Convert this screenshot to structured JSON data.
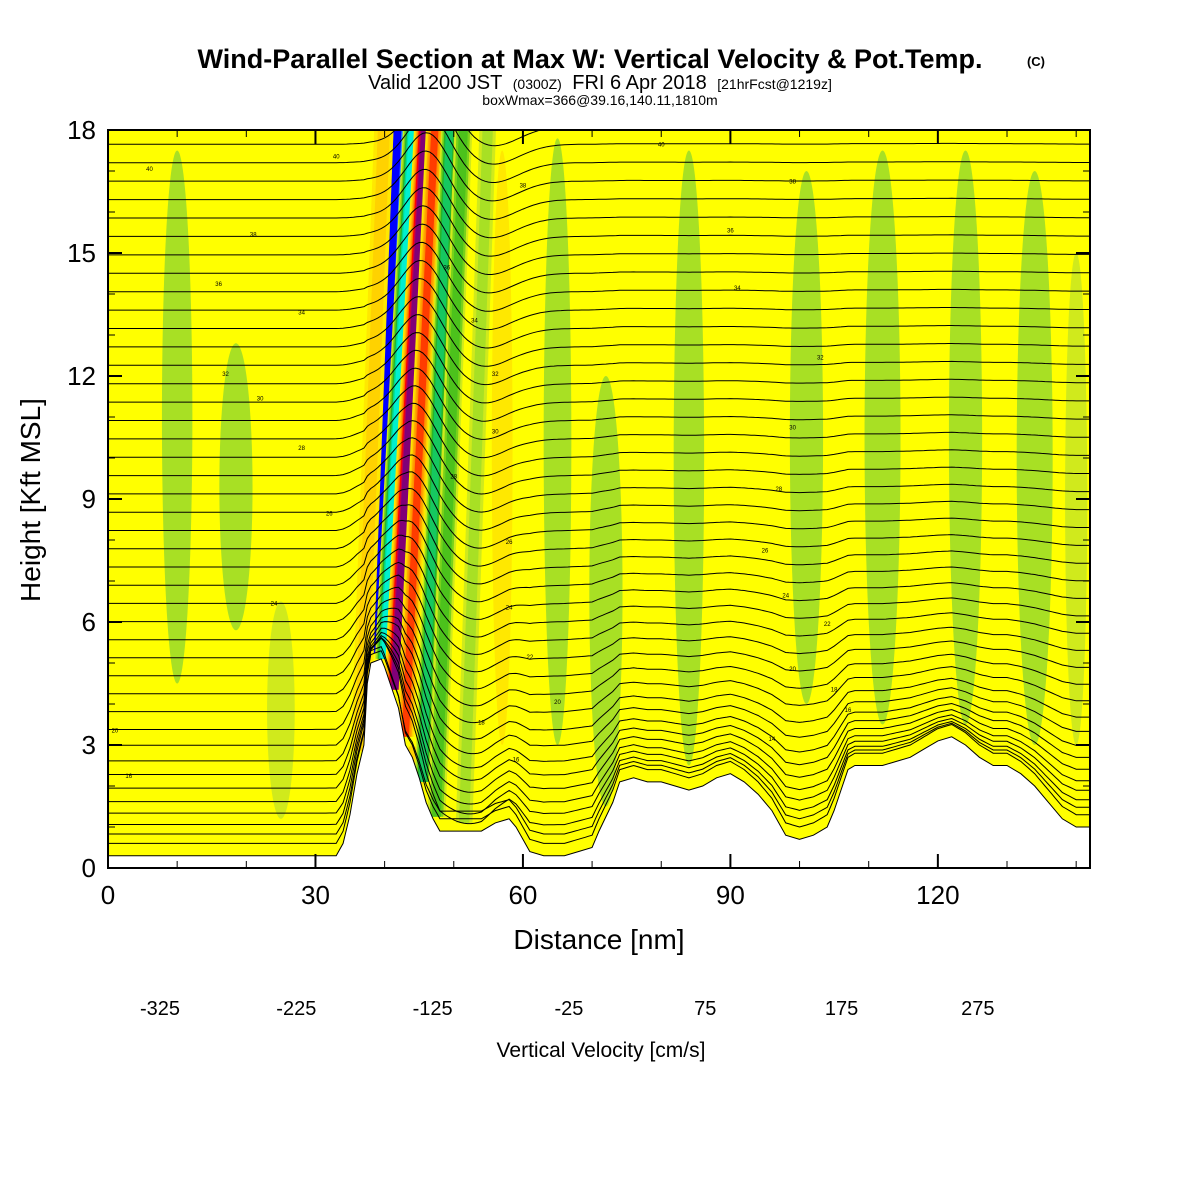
{
  "title": {
    "main": "Wind-Parallel Section at Max W: Vertical Velocity & Pot.Temp.",
    "copyright": "(C)",
    "valid_prefix": "Valid 1200 JST",
    "valid_utc": "(0300Z)",
    "valid_date": "FRI 6 Apr 2018",
    "forecast": "[21hrFcst@1219z]",
    "box_info": "boxWmax=366@39.16,140.11,1810m"
  },
  "chart_data": {
    "type": "heatmap",
    "xlabel": "Distance [nm]",
    "ylabel": "Height [Kft MSL]",
    "xlim": [
      0,
      142
    ],
    "ylim": [
      0,
      18
    ],
    "x_ticks": [
      0,
      30,
      60,
      90,
      120
    ],
    "y_ticks": [
      0,
      3,
      6,
      9,
      12,
      15,
      18
    ],
    "x_tick_labels": [
      "0",
      "30",
      "60",
      "90",
      "120"
    ],
    "y_tick_labels": [
      "0",
      "3",
      "6",
      "9",
      "12",
      "15",
      "18"
    ],
    "colorbar": {
      "label": "Vertical Velocity [cm/s]",
      "min": -325,
      "max": 325,
      "step": 25,
      "tick_values": [
        -325,
        -225,
        -125,
        -25,
        75,
        175,
        275
      ],
      "tick_labels": [
        "-325",
        "-225",
        "-125",
        "-25",
        "75",
        "175",
        "275"
      ],
      "colors": [
        "#0000ff",
        "#1a5cff",
        "#2f86ff",
        "#20b5ff",
        "#00e5ff",
        "#00f0d0",
        "#00dc96",
        "#16c860",
        "#26b42a",
        "#4cc21c",
        "#78d21a",
        "#a8e024",
        "#d0ea1c",
        "#ffff00",
        "#ffe800",
        "#ffd200",
        "#ffbc00",
        "#ffa800",
        "#ff9000",
        "#ff6e00",
        "#ff3c00",
        "#ff0000",
        "#e00030",
        "#c0004c",
        "#a00064",
        "#800078"
      ]
    },
    "terrain_kft": [
      [
        0,
        0.3
      ],
      [
        4,
        0.3
      ],
      [
        8,
        0.3
      ],
      [
        12,
        0.3
      ],
      [
        16,
        0.3
      ],
      [
        20,
        0.3
      ],
      [
        24,
        0.3
      ],
      [
        28,
        0.3
      ],
      [
        30,
        0.3
      ],
      [
        33,
        0.3
      ],
      [
        34,
        0.6
      ],
      [
        35,
        1.3
      ],
      [
        36,
        2.3
      ],
      [
        37,
        3.0
      ],
      [
        37.5,
        4.5
      ],
      [
        38,
        5.0
      ],
      [
        39.5,
        5.1
      ],
      [
        40,
        4.9
      ],
      [
        41,
        4.4
      ],
      [
        42,
        3.9
      ],
      [
        43,
        3.0
      ],
      [
        44,
        2.7
      ],
      [
        45,
        2.2
      ],
      [
        46,
        1.6
      ],
      [
        47,
        1.2
      ],
      [
        48,
        0.9
      ],
      [
        50,
        0.9
      ],
      [
        52,
        0.9
      ],
      [
        54,
        0.9
      ],
      [
        56,
        1.1
      ],
      [
        58,
        1.2
      ],
      [
        59,
        1.0
      ],
      [
        60,
        0.7
      ],
      [
        61,
        0.4
      ],
      [
        63,
        0.3
      ],
      [
        66,
        0.3
      ],
      [
        68,
        0.4
      ],
      [
        70,
        0.5
      ],
      [
        71,
        0.9
      ],
      [
        73,
        1.6
      ],
      [
        74,
        2.1
      ],
      [
        76,
        2.2
      ],
      [
        78,
        2.1
      ],
      [
        80,
        2.1
      ],
      [
        82,
        2.0
      ],
      [
        84,
        1.9
      ],
      [
        86,
        2.0
      ],
      [
        88,
        2.2
      ],
      [
        90,
        2.3
      ],
      [
        92,
        2.1
      ],
      [
        94,
        1.8
      ],
      [
        96,
        1.4
      ],
      [
        98,
        0.8
      ],
      [
        100,
        0.7
      ],
      [
        102,
        0.8
      ],
      [
        104,
        1.0
      ],
      [
        105,
        1.4
      ],
      [
        106,
        1.9
      ],
      [
        107,
        2.4
      ],
      [
        108,
        2.5
      ],
      [
        110,
        2.5
      ],
      [
        112,
        2.5
      ],
      [
        114,
        2.6
      ],
      [
        116,
        2.7
      ],
      [
        118,
        2.9
      ],
      [
        120,
        3.1
      ],
      [
        122,
        3.2
      ],
      [
        124,
        3.0
      ],
      [
        126,
        2.7
      ],
      [
        128,
        2.5
      ],
      [
        130,
        2.5
      ],
      [
        132,
        2.3
      ],
      [
        134,
        2.0
      ],
      [
        136,
        1.6
      ],
      [
        138,
        1.2
      ],
      [
        140,
        1.0
      ],
      [
        142,
        1.0
      ]
    ],
    "wave_bands": [
      {
        "x_base": 38.5,
        "x_top": 42.0,
        "width": 1.6,
        "w": -320
      },
      {
        "x_base": 40.0,
        "x_top": 44.2,
        "width": 1.4,
        "w": -200
      },
      {
        "x_base": 41.5,
        "x_top": 46.0,
        "width": 1.6,
        "w": 310
      },
      {
        "x_base": 43.0,
        "x_top": 47.4,
        "width": 1.3,
        "w": 180
      },
      {
        "x_base": 45.5,
        "x_top": 49.5,
        "width": 1.2,
        "w": -150
      },
      {
        "x_base": 47.5,
        "x_top": 51.5,
        "width": 1.3,
        "w": -90
      },
      {
        "x_base": 36.5,
        "x_top": 40.0,
        "width": 1.4,
        "w": 60
      },
      {
        "x_base": 51.5,
        "x_top": 55.0,
        "width": 1.2,
        "w": -40
      }
    ],
    "weak_downdrafts": [
      {
        "x": 10,
        "y1": 4.5,
        "y2": 17.5,
        "width": 2.2,
        "w": -30
      },
      {
        "x": 18.5,
        "y1": 5.8,
        "y2": 12.8,
        "width": 2.4,
        "w": -30
      },
      {
        "x": 25,
        "y1": 1.2,
        "y2": 6.5,
        "width": 2.0,
        "w": -25
      },
      {
        "x": 65,
        "y1": 3.0,
        "y2": 17.8,
        "width": 2.0,
        "w": -35
      },
      {
        "x": 72,
        "y1": 1.5,
        "y2": 12.0,
        "width": 2.4,
        "w": -30
      },
      {
        "x": 84,
        "y1": 2.5,
        "y2": 17.5,
        "width": 2.2,
        "w": -35
      },
      {
        "x": 101,
        "y1": 4.0,
        "y2": 17.0,
        "width": 2.4,
        "w": -30
      },
      {
        "x": 112,
        "y1": 3.5,
        "y2": 17.5,
        "width": 2.6,
        "w": -35
      },
      {
        "x": 124,
        "y1": 3.5,
        "y2": 17.5,
        "width": 2.4,
        "w": -40
      },
      {
        "x": 134,
        "y1": 3.0,
        "y2": 17.0,
        "width": 2.6,
        "w": -35
      },
      {
        "x": 140,
        "y1": 3.0,
        "y2": 15.0,
        "width": 1.6,
        "w": -25
      }
    ],
    "weak_updrafts": [
      {
        "x": 57,
        "y1": 3.0,
        "y2": 17.5,
        "width": 1.5,
        "w": 40
      },
      {
        "x": 44,
        "y1": 0.9,
        "y2": 3.0,
        "width": 1.5,
        "w": 60
      }
    ],
    "isentrope_base_kft": [
      0.3,
      0.55,
      0.8,
      1.1,
      1.4,
      1.75,
      2.1,
      2.45,
      2.85,
      3.25,
      3.7,
      4.15,
      4.6,
      5.05,
      5.5,
      5.95,
      6.4,
      6.85,
      7.3,
      7.75,
      8.2,
      8.65,
      9.1,
      9.55,
      10.0,
      10.45,
      10.9,
      11.35,
      11.8,
      12.25,
      12.7,
      13.15,
      13.6,
      14.05,
      14.5,
      14.95,
      15.4,
      15.85,
      16.3,
      16.75,
      17.2,
      17.65,
      18.1
    ],
    "contour_labels": [
      {
        "x": 1,
        "y": 3.3,
        "text": "20"
      },
      {
        "x": 3,
        "y": 2.2,
        "text": "16"
      },
      {
        "x": 6,
        "y": 17.0,
        "text": "40"
      },
      {
        "x": 21,
        "y": 15.4,
        "text": "38"
      },
      {
        "x": 16,
        "y": 14.2,
        "text": "36"
      },
      {
        "x": 28,
        "y": 13.5,
        "text": "34"
      },
      {
        "x": 17,
        "y": 12.0,
        "text": "32"
      },
      {
        "x": 22,
        "y": 11.4,
        "text": "30"
      },
      {
        "x": 28,
        "y": 10.2,
        "text": "28"
      },
      {
        "x": 32,
        "y": 8.6,
        "text": "26"
      },
      {
        "x": 24,
        "y": 6.4,
        "text": "24"
      },
      {
        "x": 33,
        "y": 17.3,
        "text": "40"
      },
      {
        "x": 60,
        "y": 16.6,
        "text": "38"
      },
      {
        "x": 49,
        "y": 14.6,
        "text": "36"
      },
      {
        "x": 53,
        "y": 13.3,
        "text": "34"
      },
      {
        "x": 56,
        "y": 12.0,
        "text": "32"
      },
      {
        "x": 56,
        "y": 10.6,
        "text": "30"
      },
      {
        "x": 50,
        "y": 9.5,
        "text": "28"
      },
      {
        "x": 58,
        "y": 7.9,
        "text": "26"
      },
      {
        "x": 58,
        "y": 6.3,
        "text": "24"
      },
      {
        "x": 61,
        "y": 5.1,
        "text": "22"
      },
      {
        "x": 65,
        "y": 4.0,
        "text": "20"
      },
      {
        "x": 54,
        "y": 3.5,
        "text": "18"
      },
      {
        "x": 59,
        "y": 2.6,
        "text": "16"
      },
      {
        "x": 80,
        "y": 17.6,
        "text": "40"
      },
      {
        "x": 99,
        "y": 16.7,
        "text": "38"
      },
      {
        "x": 90,
        "y": 15.5,
        "text": "36"
      },
      {
        "x": 91,
        "y": 14.1,
        "text": "34"
      },
      {
        "x": 103,
        "y": 12.4,
        "text": "32"
      },
      {
        "x": 99,
        "y": 10.7,
        "text": "30"
      },
      {
        "x": 97,
        "y": 9.2,
        "text": "28"
      },
      {
        "x": 95,
        "y": 7.7,
        "text": "26"
      },
      {
        "x": 98,
        "y": 6.6,
        "text": "24"
      },
      {
        "x": 104,
        "y": 5.9,
        "text": "22"
      },
      {
        "x": 99,
        "y": 4.8,
        "text": "20"
      },
      {
        "x": 105,
        "y": 4.3,
        "text": "18"
      },
      {
        "x": 107,
        "y": 3.8,
        "text": "16"
      },
      {
        "x": 96,
        "y": 3.1,
        "text": "14"
      }
    ]
  }
}
